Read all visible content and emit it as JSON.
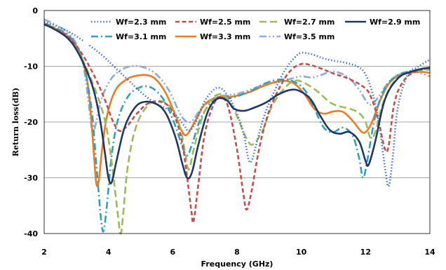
{
  "chart_data": {
    "type": "line",
    "title": "",
    "xlabel": "Frequency (GHz)",
    "ylabel": "Return loss(dB)",
    "xlim": [
      2,
      14
    ],
    "ylim": [
      -40,
      0
    ],
    "x_ticks": [
      2,
      4,
      6,
      8,
      10,
      12,
      14
    ],
    "y_ticks": [
      0,
      -10,
      -20,
      -30,
      -40
    ],
    "grid": "horizontal",
    "legend_position": "top",
    "series": [
      {
        "name": "Wf=2.3 mm",
        "color": "#4472c4",
        "dash": "dot",
        "points": [
          [
            2.0,
            -2.0
          ],
          [
            2.3,
            -2.6
          ],
          [
            2.7,
            -3.6
          ],
          [
            3.0,
            -4.6
          ],
          [
            3.4,
            -6.2
          ],
          [
            3.8,
            -8.0
          ],
          [
            4.2,
            -10.2
          ],
          [
            4.6,
            -12.4
          ],
          [
            5.0,
            -14.6
          ],
          [
            5.4,
            -16.4
          ],
          [
            5.8,
            -17.6
          ],
          [
            6.1,
            -18.8
          ],
          [
            6.35,
            -20.6
          ],
          [
            6.5,
            -21.6
          ],
          [
            6.7,
            -20.2
          ],
          [
            7.0,
            -16.2
          ],
          [
            7.3,
            -14.1
          ],
          [
            7.5,
            -14.0
          ],
          [
            7.7,
            -15.2
          ],
          [
            7.95,
            -17.8
          ],
          [
            8.2,
            -22.0
          ],
          [
            8.35,
            -26.5
          ],
          [
            8.45,
            -27.0
          ],
          [
            8.6,
            -24.0
          ],
          [
            8.85,
            -18.8
          ],
          [
            9.2,
            -14.0
          ],
          [
            9.5,
            -10.6
          ],
          [
            9.8,
            -8.4
          ],
          [
            10.0,
            -7.6
          ],
          [
            10.3,
            -7.8
          ],
          [
            10.7,
            -8.6
          ],
          [
            11.0,
            -9.0
          ],
          [
            11.4,
            -9.4
          ],
          [
            11.8,
            -10.2
          ],
          [
            12.0,
            -11.5
          ],
          [
            12.2,
            -14.5
          ],
          [
            12.4,
            -19.5
          ],
          [
            12.6,
            -28.0
          ],
          [
            12.72,
            -31.5
          ],
          [
            12.85,
            -26.0
          ],
          [
            13.0,
            -17.5
          ],
          [
            13.3,
            -11.6
          ],
          [
            13.6,
            -10.2
          ],
          [
            14.0,
            -8.8
          ]
        ]
      },
      {
        "name": "Wf=2.5 mm",
        "color": "#c0504d",
        "dash": "dash",
        "points": [
          [
            2.0,
            -2.4
          ],
          [
            2.4,
            -3.4
          ],
          [
            2.8,
            -5.0
          ],
          [
            3.2,
            -8.0
          ],
          [
            3.6,
            -12.2
          ],
          [
            3.9,
            -16.2
          ],
          [
            4.15,
            -20.0
          ],
          [
            4.35,
            -21.6
          ],
          [
            4.6,
            -20.6
          ],
          [
            4.9,
            -18.4
          ],
          [
            5.3,
            -16.5
          ],
          [
            5.8,
            -16.8
          ],
          [
            6.1,
            -19.6
          ],
          [
            6.3,
            -24.0
          ],
          [
            6.45,
            -30.0
          ],
          [
            6.58,
            -36.0
          ],
          [
            6.65,
            -37.8
          ],
          [
            6.8,
            -31.0
          ],
          [
            7.0,
            -22.0
          ],
          [
            7.3,
            -16.5
          ],
          [
            7.55,
            -15.6
          ],
          [
            7.75,
            -17.8
          ],
          [
            8.0,
            -25.0
          ],
          [
            8.2,
            -33.0
          ],
          [
            8.3,
            -35.7
          ],
          [
            8.45,
            -32.5
          ],
          [
            8.7,
            -24.5
          ],
          [
            9.0,
            -18.0
          ],
          [
            9.4,
            -13.0
          ],
          [
            9.7,
            -10.6
          ],
          [
            10.0,
            -9.6
          ],
          [
            10.3,
            -9.8
          ],
          [
            10.7,
            -10.6
          ],
          [
            11.0,
            -11.3
          ],
          [
            11.5,
            -12.3
          ],
          [
            12.0,
            -14.0
          ],
          [
            12.2,
            -16.0
          ],
          [
            12.4,
            -19.8
          ],
          [
            12.6,
            -24.8
          ],
          [
            12.72,
            -24.2
          ],
          [
            12.9,
            -16.5
          ],
          [
            13.2,
            -12.5
          ],
          [
            13.6,
            -10.8
          ],
          [
            14.0,
            -10.2
          ]
        ]
      },
      {
        "name": "Wf=2.7 mm",
        "color": "#9bbb59",
        "dash": "longdash",
        "points": [
          [
            2.0,
            -2.4
          ],
          [
            2.4,
            -3.5
          ],
          [
            2.8,
            -5.2
          ],
          [
            3.1,
            -7.8
          ],
          [
            3.4,
            -11.5
          ],
          [
            3.7,
            -16.0
          ],
          [
            3.9,
            -20.0
          ],
          [
            4.05,
            -25.0
          ],
          [
            4.2,
            -32.0
          ],
          [
            4.3,
            -37.0
          ],
          [
            4.38,
            -40.0
          ],
          [
            4.45,
            -37.0
          ],
          [
            4.6,
            -28.0
          ],
          [
            4.85,
            -21.0
          ],
          [
            5.2,
            -17.2
          ],
          [
            5.6,
            -16.2
          ],
          [
            6.0,
            -17.8
          ],
          [
            6.25,
            -21.5
          ],
          [
            6.4,
            -26.0
          ],
          [
            6.5,
            -28.5
          ],
          [
            6.65,
            -25.0
          ],
          [
            6.9,
            -19.5
          ],
          [
            7.2,
            -16.0
          ],
          [
            7.5,
            -15.0
          ],
          [
            7.75,
            -16.2
          ],
          [
            8.0,
            -19.0
          ],
          [
            8.3,
            -23.0
          ],
          [
            8.5,
            -24.0
          ],
          [
            8.8,
            -21.5
          ],
          [
            9.1,
            -17.0
          ],
          [
            9.5,
            -13.8
          ],
          [
            9.8,
            -12.6
          ],
          [
            10.1,
            -13.0
          ],
          [
            10.5,
            -14.5
          ],
          [
            10.9,
            -16.5
          ],
          [
            11.2,
            -17.2
          ],
          [
            11.5,
            -17.6
          ],
          [
            11.8,
            -18.4
          ],
          [
            12.0,
            -20.0
          ],
          [
            12.15,
            -22.8
          ],
          [
            12.3,
            -21.8
          ],
          [
            12.55,
            -16.5
          ],
          [
            12.9,
            -12.6
          ],
          [
            13.3,
            -11.2
          ],
          [
            13.7,
            -10.8
          ],
          [
            14.0,
            -10.6
          ]
        ]
      },
      {
        "name": "Wf=2.9 mm",
        "color": "#1f3864",
        "dash": "solid",
        "points": [
          [
            2.0,
            -2.5
          ],
          [
            2.3,
            -3.3
          ],
          [
            2.7,
            -4.8
          ],
          [
            3.0,
            -7.0
          ],
          [
            3.3,
            -10.5
          ],
          [
            3.55,
            -14.5
          ],
          [
            3.75,
            -20.0
          ],
          [
            3.9,
            -26.0
          ],
          [
            4.0,
            -30.0
          ],
          [
            4.1,
            -30.8
          ],
          [
            4.25,
            -27.0
          ],
          [
            4.5,
            -21.0
          ],
          [
            4.8,
            -17.6
          ],
          [
            5.1,
            -16.4
          ],
          [
            5.5,
            -16.8
          ],
          [
            5.8,
            -18.6
          ],
          [
            6.1,
            -23.0
          ],
          [
            6.3,
            -27.5
          ],
          [
            6.45,
            -30.0
          ],
          [
            6.6,
            -29.0
          ],
          [
            6.8,
            -24.0
          ],
          [
            7.1,
            -18.0
          ],
          [
            7.4,
            -15.8
          ],
          [
            7.7,
            -16.2
          ],
          [
            7.9,
            -17.6
          ],
          [
            8.2,
            -18.0
          ],
          [
            8.5,
            -17.5
          ],
          [
            8.9,
            -16.5
          ],
          [
            9.3,
            -15.0
          ],
          [
            9.7,
            -14.2
          ],
          [
            10.0,
            -14.6
          ],
          [
            10.3,
            -16.0
          ],
          [
            10.6,
            -19.0
          ],
          [
            10.9,
            -21.5
          ],
          [
            11.2,
            -22.1
          ],
          [
            11.5,
            -21.8
          ],
          [
            11.8,
            -23.5
          ],
          [
            12.0,
            -27.0
          ],
          [
            12.1,
            -27.6
          ],
          [
            12.3,
            -23.5
          ],
          [
            12.6,
            -16.0
          ],
          [
            13.0,
            -12.2
          ],
          [
            13.4,
            -11.0
          ],
          [
            13.8,
            -10.4
          ],
          [
            14.0,
            -10.3
          ]
        ]
      },
      {
        "name": "Wf=3.1 mm",
        "color": "#31a0b8",
        "dash": "dashdot",
        "points": [
          [
            2.0,
            -2.3
          ],
          [
            2.3,
            -3.0
          ],
          [
            2.7,
            -4.2
          ],
          [
            3.0,
            -6.2
          ],
          [
            3.2,
            -9.0
          ],
          [
            3.35,
            -13.0
          ],
          [
            3.5,
            -19.0
          ],
          [
            3.6,
            -26.0
          ],
          [
            3.7,
            -33.0
          ],
          [
            3.78,
            -38.0
          ],
          [
            3.85,
            -39.5
          ],
          [
            3.95,
            -35.0
          ],
          [
            4.1,
            -26.0
          ],
          [
            4.3,
            -19.5
          ],
          [
            4.6,
            -15.5
          ],
          [
            4.9,
            -14.0
          ],
          [
            5.2,
            -13.6
          ],
          [
            5.5,
            -14.5
          ],
          [
            5.8,
            -16.8
          ],
          [
            6.1,
            -21.0
          ],
          [
            6.3,
            -24.5
          ],
          [
            6.45,
            -26.0
          ],
          [
            6.6,
            -24.0
          ],
          [
            6.9,
            -19.0
          ],
          [
            7.3,
            -16.0
          ],
          [
            7.7,
            -15.8
          ],
          [
            8.1,
            -15.2
          ],
          [
            8.5,
            -14.2
          ],
          [
            8.9,
            -13.0
          ],
          [
            9.3,
            -12.4
          ],
          [
            9.7,
            -12.6
          ],
          [
            10.1,
            -14.2
          ],
          [
            10.4,
            -17.5
          ],
          [
            10.7,
            -21.0
          ],
          [
            11.0,
            -21.8
          ],
          [
            11.3,
            -21.0
          ],
          [
            11.6,
            -22.5
          ],
          [
            11.8,
            -26.5
          ],
          [
            11.92,
            -30.0
          ],
          [
            12.05,
            -27.0
          ],
          [
            12.3,
            -19.0
          ],
          [
            12.6,
            -14.0
          ],
          [
            13.0,
            -11.6
          ],
          [
            13.5,
            -10.8
          ],
          [
            14.0,
            -10.4
          ]
        ]
      },
      {
        "name": "Wf=3.3 mm",
        "color": "#e87d23",
        "dash": "solid",
        "points": [
          [
            2.0,
            -2.4
          ],
          [
            2.3,
            -3.1
          ],
          [
            2.7,
            -4.4
          ],
          [
            3.0,
            -6.4
          ],
          [
            3.2,
            -9.2
          ],
          [
            3.35,
            -13.0
          ],
          [
            3.45,
            -18.5
          ],
          [
            3.55,
            -26.0
          ],
          [
            3.62,
            -31.0
          ],
          [
            3.7,
            -30.5
          ],
          [
            3.8,
            -25.0
          ],
          [
            3.95,
            -19.0
          ],
          [
            4.2,
            -14.5
          ],
          [
            4.5,
            -12.6
          ],
          [
            4.8,
            -11.8
          ],
          [
            5.2,
            -11.6
          ],
          [
            5.5,
            -12.5
          ],
          [
            5.8,
            -15.0
          ],
          [
            6.1,
            -19.0
          ],
          [
            6.3,
            -21.8
          ],
          [
            6.45,
            -22.2
          ],
          [
            6.7,
            -19.8
          ],
          [
            7.0,
            -16.8
          ],
          [
            7.4,
            -15.6
          ],
          [
            7.9,
            -15.4
          ],
          [
            8.4,
            -14.6
          ],
          [
            8.8,
            -13.6
          ],
          [
            9.2,
            -12.8
          ],
          [
            9.5,
            -12.6
          ],
          [
            9.8,
            -13.2
          ],
          [
            10.1,
            -15.0
          ],
          [
            10.4,
            -17.6
          ],
          [
            10.7,
            -18.5
          ],
          [
            11.0,
            -18.1
          ],
          [
            11.3,
            -18.2
          ],
          [
            11.6,
            -19.8
          ],
          [
            11.85,
            -21.6
          ],
          [
            12.0,
            -21.8
          ],
          [
            12.2,
            -20.0
          ],
          [
            12.5,
            -15.5
          ],
          [
            12.8,
            -12.6
          ],
          [
            13.2,
            -11.4
          ],
          [
            13.7,
            -11.0
          ],
          [
            14.0,
            -11.2
          ]
        ]
      },
      {
        "name": "Wf=3.5 mm",
        "color": "#8ea9db",
        "dash": "dashdotdot",
        "points": [
          [
            2.0,
            -1.6
          ],
          [
            2.3,
            -2.4
          ],
          [
            2.7,
            -3.8
          ],
          [
            3.0,
            -6.0
          ],
          [
            3.2,
            -9.5
          ],
          [
            3.35,
            -15.0
          ],
          [
            3.45,
            -20.0
          ],
          [
            3.52,
            -22.0
          ],
          [
            3.6,
            -20.5
          ],
          [
            3.75,
            -16.5
          ],
          [
            4.0,
            -13.0
          ],
          [
            4.3,
            -11.0
          ],
          [
            4.7,
            -10.0
          ],
          [
            5.1,
            -10.2
          ],
          [
            5.5,
            -11.5
          ],
          [
            5.9,
            -14.5
          ],
          [
            6.2,
            -18.2
          ],
          [
            6.4,
            -19.8
          ],
          [
            6.6,
            -19.8
          ],
          [
            6.9,
            -17.5
          ],
          [
            7.3,
            -15.6
          ],
          [
            7.7,
            -15.2
          ],
          [
            8.1,
            -14.8
          ],
          [
            8.5,
            -14.0
          ],
          [
            8.9,
            -13.2
          ],
          [
            9.3,
            -12.8
          ],
          [
            9.7,
            -12.2
          ],
          [
            10.0,
            -11.8
          ],
          [
            10.3,
            -12.0
          ],
          [
            10.6,
            -11.6
          ],
          [
            10.9,
            -11.0
          ],
          [
            11.2,
            -11.2
          ],
          [
            11.5,
            -12.2
          ],
          [
            11.8,
            -14.2
          ],
          [
            12.05,
            -16.5
          ],
          [
            12.2,
            -16.8
          ],
          [
            12.4,
            -15.5
          ],
          [
            12.7,
            -13.0
          ],
          [
            13.0,
            -11.6
          ],
          [
            13.5,
            -11.0
          ],
          [
            14.0,
            -11.8
          ]
        ]
      }
    ]
  }
}
